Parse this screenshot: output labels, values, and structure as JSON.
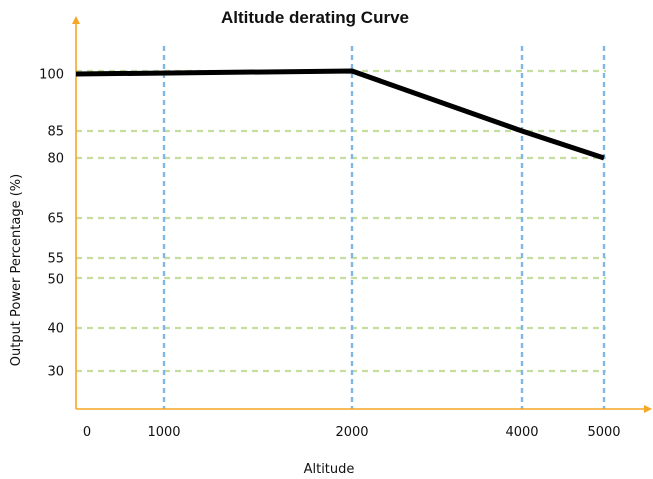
{
  "chart_data": {
    "type": "line",
    "title": "Altitude derating Curve",
    "xlabel": "Altitude",
    "ylabel": "Output Power Percentage (%)",
    "x_ticks": [
      {
        "value": 0,
        "label": "0"
      },
      {
        "value": 1000,
        "label": "1000"
      },
      {
        "value": 2000,
        "label": "2000"
      },
      {
        "value": 4000,
        "label": "4000"
      },
      {
        "value": 5000,
        "label": "5000"
      }
    ],
    "y_ticks": [
      {
        "value": 100,
        "label": "100"
      },
      {
        "value": 85,
        "label": "85"
      },
      {
        "value": 80,
        "label": "80"
      },
      {
        "value": 65,
        "label": "65"
      },
      {
        "value": 55,
        "label": "55"
      },
      {
        "value": 50,
        "label": "50"
      },
      {
        "value": 40,
        "label": "40"
      },
      {
        "value": 30,
        "label": "30"
      }
    ],
    "vertical_gridlines": [
      1000,
      2000,
      4000,
      5000
    ],
    "horizontal_gridlines": [
      101,
      87,
      80,
      65,
      55,
      51,
      40,
      30
    ],
    "series": [
      {
        "points": [
          {
            "x": 0,
            "y": 100
          },
          {
            "x": 2000,
            "y": 101
          },
          {
            "x": 4000,
            "y": 87
          },
          {
            "x": 5000,
            "y": 80
          }
        ]
      }
    ],
    "colors": {
      "axis": "#f5a623",
      "vgrid": "#7fb8e6",
      "hgrid": "#c5dea0",
      "line": "#000000"
    }
  }
}
